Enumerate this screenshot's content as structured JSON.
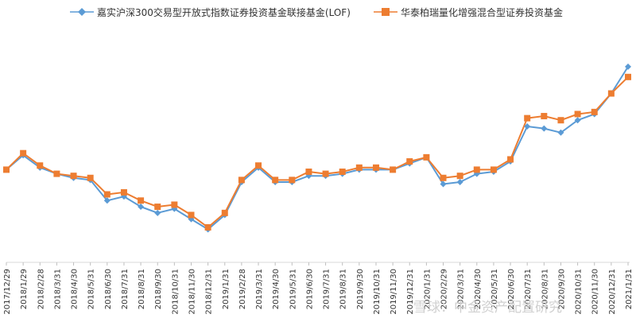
{
  "chart_data": {
    "type": "line",
    "title": "",
    "xlabel": "",
    "ylabel": "",
    "legend_position": "top",
    "grid": false,
    "categories": [
      "2017/12/29",
      "2018/1/29",
      "2018/2/28",
      "2018/3/31",
      "2018/4/30",
      "2018/5/31",
      "2018/6/30",
      "2018/7/31",
      "2018/8/31",
      "2018/9/30",
      "2018/10/31",
      "2018/11/30",
      "2018/12/31",
      "2019/1/31",
      "2019/2/28",
      "2019/3/31",
      "2019/4/30",
      "2019/5/31",
      "2019/6/30",
      "2019/7/31",
      "2019/8/31",
      "2019/9/30",
      "2019/10/31",
      "2019/11/30",
      "2019/12/31",
      "2020/1/31",
      "2020/2/29",
      "2020/3/31",
      "2020/4/30",
      "2020/5/31",
      "2020/6/30",
      "2020/7/31",
      "2020/8/31",
      "2020/9/30",
      "2020/10/31",
      "2020/11/30",
      "2020/12/31",
      "2021/1/31"
    ],
    "ylim": [
      0.55,
      1.65
    ],
    "series": [
      {
        "name": "嘉实沪深300交易型开放式指数证券投资基金联接基金(LOF)",
        "color": "#5b9bd5",
        "marker": "diamond",
        "values": [
          1.0,
          1.07,
          1.01,
          0.98,
          0.96,
          0.95,
          0.85,
          0.87,
          0.82,
          0.79,
          0.81,
          0.76,
          0.71,
          0.78,
          0.94,
          1.01,
          0.94,
          0.94,
          0.97,
          0.97,
          0.98,
          1.0,
          1.0,
          1.0,
          1.03,
          1.06,
          0.93,
          0.94,
          0.98,
          0.99,
          1.04,
          1.21,
          1.2,
          1.18,
          1.24,
          1.27,
          1.37,
          1.5
        ]
      },
      {
        "name": "华泰柏瑞量化增强混合型证券投资基金",
        "color": "#ed7d31",
        "marker": "square",
        "values": [
          1.0,
          1.08,
          1.02,
          0.98,
          0.97,
          0.96,
          0.88,
          0.89,
          0.85,
          0.82,
          0.83,
          0.78,
          0.72,
          0.79,
          0.95,
          1.02,
          0.95,
          0.95,
          0.99,
          0.98,
          0.99,
          1.01,
          1.01,
          1.0,
          1.04,
          1.06,
          0.96,
          0.97,
          1.0,
          1.0,
          1.05,
          1.25,
          1.26,
          1.24,
          1.27,
          1.28,
          1.37,
          1.45
        ]
      }
    ]
  },
  "watermark": "雪球：中金资产配置研究"
}
